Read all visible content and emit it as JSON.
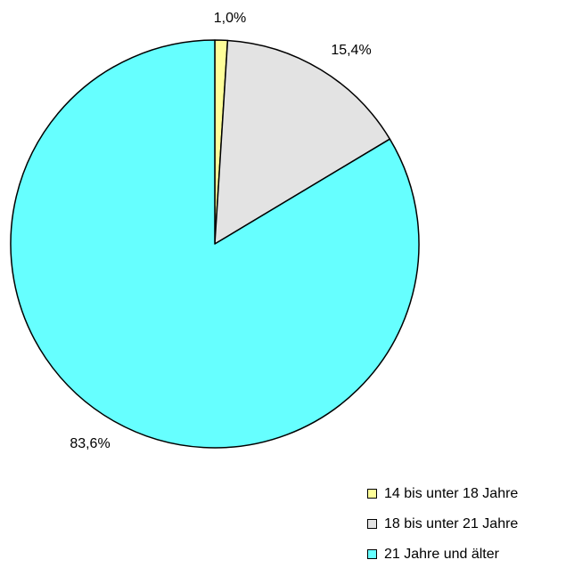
{
  "chart_data": {
    "type": "pie",
    "title": "",
    "categories": [
      "14 bis unter 18 Jahre",
      "18 bis unter 21 Jahre",
      "21 Jahre und älter"
    ],
    "values": [
      1.0,
      15.4,
      83.6
    ],
    "labels": [
      "1,0%",
      "15,4%",
      "83,6%"
    ],
    "colors": [
      "#ffff99",
      "#e3e3e3",
      "#66ffff"
    ],
    "start_angle_deg": 0,
    "direction": "clockwise",
    "legend_position": "bottom-right"
  }
}
